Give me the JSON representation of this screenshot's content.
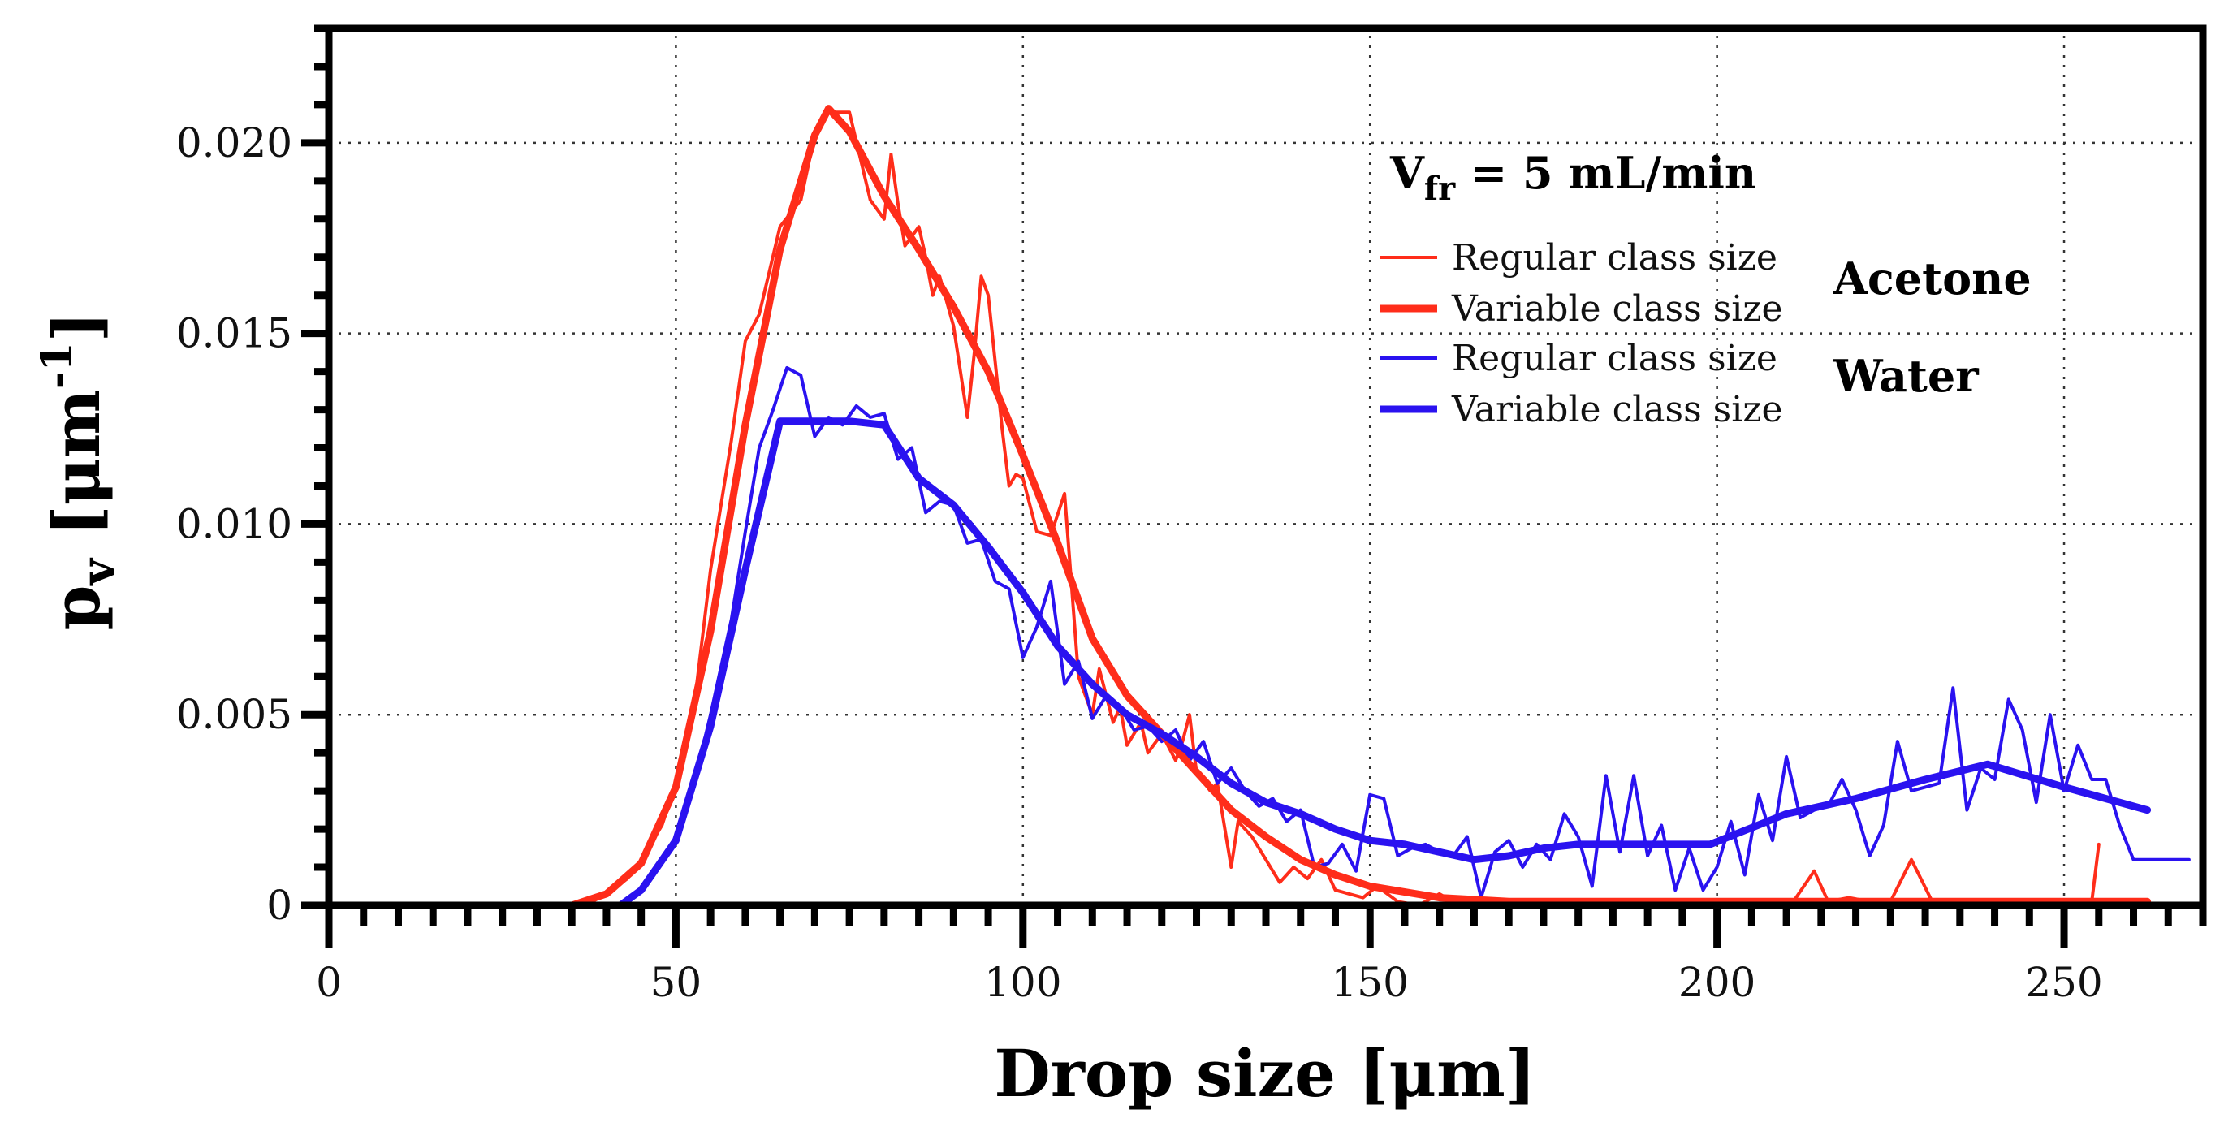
{
  "chart_data": {
    "type": "line",
    "xlabel": "Drop size [μm]",
    "ylabel_main": "p",
    "ylabel_sub": "v",
    "ylabel_unit_pre": " [μm",
    "ylabel_unit_sup": "-1",
    "ylabel_unit_post": "]",
    "xlim": [
      0,
      270
    ],
    "ylim": [
      0,
      0.023
    ],
    "xticks": [
      0,
      50,
      100,
      150,
      200,
      250
    ],
    "xtick_labels": [
      "0",
      "50",
      "100",
      "150",
      "200",
      "250"
    ],
    "yticks": [
      0,
      0.005,
      0.01,
      0.015,
      0.02
    ],
    "ytick_labels": [
      "0",
      "0.005",
      "0.010",
      "0.015",
      "0.020"
    ],
    "grid": true,
    "legend": {
      "title_main": "V",
      "title_sub": "fr",
      "title_rest": " = 5 mL/min",
      "group_labels": [
        "Acetone",
        "Water"
      ],
      "placement": "top-right"
    },
    "series": [
      {
        "name": "Regular class size",
        "group": "Acetone",
        "color": "#ff2d1a",
        "width": "thin",
        "x": [
          35,
          38,
          40,
          43,
          45,
          48,
          50,
          53,
          55,
          58,
          60,
          62,
          65,
          68,
          70,
          72,
          75,
          78,
          80,
          81,
          82,
          83,
          85,
          86,
          87,
          88,
          90,
          92,
          93,
          94,
          95,
          97,
          98,
          99,
          100,
          102,
          104,
          106,
          108,
          110,
          111,
          112,
          113,
          114,
          115,
          117,
          118,
          120,
          122,
          123,
          124,
          125,
          127,
          128,
          130,
          131,
          133,
          135,
          137,
          139,
          141,
          143,
          145,
          147,
          149,
          151,
          154,
          157,
          160,
          163,
          166,
          169,
          172,
          175,
          178,
          181,
          184,
          187,
          190,
          193,
          196,
          199,
          202,
          205,
          208,
          211,
          214,
          216,
          219,
          222,
          225,
          228,
          231,
          234,
          237,
          240,
          243,
          246,
          249,
          252,
          254,
          255
        ],
        "values": [
          0.0,
          0.0001,
          0.0003,
          0.0007,
          0.0012,
          0.0021,
          0.0032,
          0.0058,
          0.0088,
          0.0122,
          0.0148,
          0.0155,
          0.0178,
          0.0185,
          0.0202,
          0.0208,
          0.0208,
          0.0185,
          0.018,
          0.0197,
          0.0184,
          0.0173,
          0.0178,
          0.017,
          0.016,
          0.0165,
          0.0152,
          0.0128,
          0.0145,
          0.0165,
          0.016,
          0.0125,
          0.011,
          0.0113,
          0.0112,
          0.0098,
          0.0097,
          0.0108,
          0.006,
          0.005,
          0.0062,
          0.0055,
          0.0048,
          0.0052,
          0.0042,
          0.0048,
          0.004,
          0.0045,
          0.0038,
          0.0043,
          0.005,
          0.0035,
          0.003,
          0.0032,
          0.001,
          0.0022,
          0.0018,
          0.0012,
          0.0006,
          0.001,
          0.0007,
          0.0012,
          0.0004,
          0.0003,
          0.0002,
          0.0005,
          0.0001,
          0.0,
          0.0003,
          0.0,
          0.0002,
          0.0,
          0.0001,
          0.0,
          0.0001,
          0.0,
          0.0,
          0.0,
          0.0,
          0.0,
          0.0,
          0.0,
          0.0,
          0.0001,
          0.0,
          0.0001,
          0.0009,
          0.0001,
          0.0002,
          0.0001,
          0.0001,
          0.0012,
          0.0001,
          0.0,
          0.0001,
          0.0,
          0.0,
          0.0,
          0.0001,
          0.0001,
          0.0001,
          0.0016
        ]
      },
      {
        "name": "Variable class size",
        "group": "Acetone",
        "color": "#ff2d1a",
        "width": "thick",
        "x": [
          35,
          40,
          45,
          50,
          55,
          60,
          65,
          70,
          72,
          75,
          80,
          85,
          90,
          95,
          100,
          105,
          110,
          115,
          120,
          125,
          130,
          135,
          140,
          145,
          150,
          160,
          170,
          180,
          200,
          220,
          240,
          262
        ],
        "values": [
          0.0,
          0.0003,
          0.0011,
          0.0031,
          0.0072,
          0.0126,
          0.0172,
          0.0202,
          0.0209,
          0.0203,
          0.0186,
          0.0172,
          0.0157,
          0.014,
          0.0118,
          0.0095,
          0.007,
          0.0055,
          0.0045,
          0.0035,
          0.0025,
          0.0018,
          0.0012,
          0.0008,
          0.0005,
          0.0002,
          0.0001,
          0.0001,
          0.0001,
          0.0001,
          0.0001,
          0.0001
        ]
      },
      {
        "name": "Regular class size",
        "group": "Water",
        "color": "#2a12f0",
        "width": "thin",
        "x": [
          41,
          43,
          45,
          47,
          50,
          53,
          55,
          58,
          60,
          62,
          64,
          66,
          68,
          70,
          72,
          74,
          76,
          78,
          80,
          82,
          84,
          86,
          88,
          90,
          92,
          94,
          96,
          98,
          100,
          102,
          104,
          106,
          108,
          110,
          112,
          114,
          116,
          118,
          120,
          122,
          124,
          126,
          128,
          130,
          132,
          134,
          136,
          138,
          140,
          142,
          144,
          146,
          148,
          150,
          152,
          154,
          156,
          158,
          160,
          162,
          164,
          166,
          168,
          170,
          172,
          174,
          176,
          178,
          180,
          182,
          184,
          186,
          188,
          190,
          192,
          194,
          196,
          198,
          200,
          202,
          204,
          206,
          208,
          210,
          212,
          214,
          216,
          218,
          220,
          222,
          224,
          226,
          228,
          230,
          232,
          234,
          236,
          238,
          240,
          242,
          244,
          246,
          248,
          250,
          252,
          254,
          256,
          258,
          260,
          262,
          264,
          266,
          268
        ],
        "values": [
          0.0,
          0.0001,
          0.0004,
          0.001,
          0.0018,
          0.0035,
          0.005,
          0.0075,
          0.0098,
          0.012,
          0.013,
          0.0141,
          0.0139,
          0.0123,
          0.0128,
          0.0126,
          0.0131,
          0.0128,
          0.0129,
          0.0117,
          0.012,
          0.0103,
          0.0106,
          0.0105,
          0.0095,
          0.0096,
          0.0085,
          0.0083,
          0.0065,
          0.0073,
          0.0085,
          0.0058,
          0.0064,
          0.0049,
          0.0055,
          0.0052,
          0.0046,
          0.0047,
          0.0043,
          0.0046,
          0.0038,
          0.0043,
          0.0032,
          0.0036,
          0.003,
          0.0026,
          0.0028,
          0.0022,
          0.0025,
          0.001,
          0.0011,
          0.0016,
          0.0009,
          0.0029,
          0.0028,
          0.0013,
          0.0015,
          0.0016,
          0.0014,
          0.0013,
          0.0018,
          0.0002,
          0.0014,
          0.0017,
          0.001,
          0.0016,
          0.0012,
          0.0024,
          0.0018,
          0.0005,
          0.0034,
          0.0014,
          0.0034,
          0.0013,
          0.0021,
          0.0004,
          0.0015,
          0.0004,
          0.001,
          0.0022,
          0.0008,
          0.0029,
          0.0017,
          0.0039,
          0.0023,
          0.0025,
          0.0026,
          0.0033,
          0.0025,
          0.0013,
          0.0021,
          0.0043,
          0.003,
          0.0031,
          0.0032,
          0.0057,
          0.0025,
          0.0036,
          0.0033,
          0.0054,
          0.0046,
          0.0027,
          0.005,
          0.003,
          0.0042,
          0.0033,
          0.0033,
          0.0021,
          0.0012,
          0.0012,
          0.0012,
          0.0012,
          0.0012
        ]
      },
      {
        "name": "Variable class size",
        "group": "Water",
        "color": "#2a12f0",
        "width": "thick",
        "x": [
          42,
          45,
          50,
          55,
          60,
          65,
          70,
          75,
          80,
          85,
          90,
          95,
          100,
          105,
          110,
          115,
          120,
          125,
          130,
          135,
          140,
          145,
          150,
          155,
          160,
          165,
          170,
          175,
          180,
          190,
          199,
          210,
          220,
          230,
          239,
          250,
          262
        ],
        "values": [
          0.0,
          0.0004,
          0.0017,
          0.0047,
          0.0088,
          0.0127,
          0.0127,
          0.0127,
          0.0126,
          0.0112,
          0.0105,
          0.0094,
          0.0082,
          0.0068,
          0.0058,
          0.005,
          0.0045,
          0.0039,
          0.0032,
          0.0027,
          0.0024,
          0.002,
          0.0017,
          0.0016,
          0.0014,
          0.0012,
          0.0013,
          0.0015,
          0.0016,
          0.0016,
          0.0016,
          0.0024,
          0.0028,
          0.0033,
          0.0037,
          0.0031,
          0.0025
        ]
      }
    ]
  }
}
